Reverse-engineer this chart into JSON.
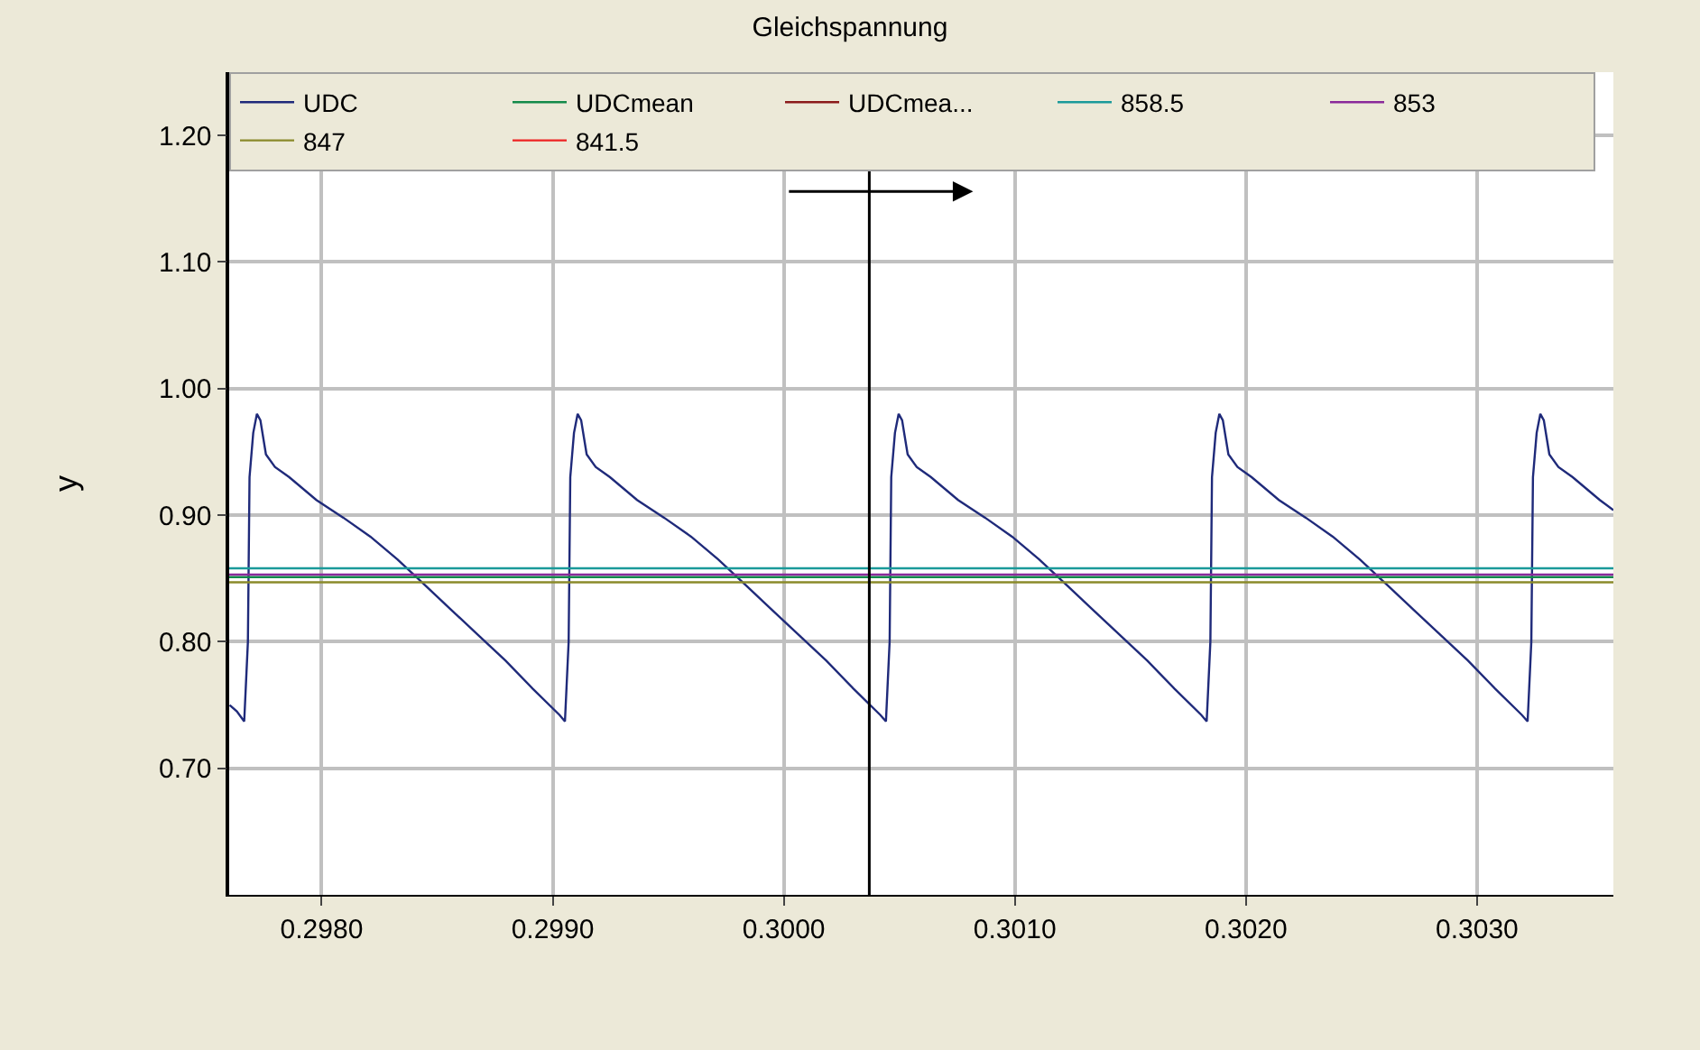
{
  "chart_data": {
    "type": "line",
    "title": "Gleichspannung",
    "ylabel": "y",
    "xlim": [
      0.2976,
      0.30359
    ],
    "xticks": [
      {
        "value": 0.298,
        "label": "0.2980"
      },
      {
        "value": 0.299,
        "label": "0.2990"
      },
      {
        "value": 0.3,
        "label": "0.3000"
      },
      {
        "value": 0.301,
        "label": "0.3010"
      },
      {
        "value": 0.302,
        "label": "0.3020"
      },
      {
        "value": 0.303,
        "label": "0.3030"
      }
    ],
    "ylim": [
      0.6,
      1.25
    ],
    "yticks": [
      {
        "value": 0.7,
        "label": "0.70"
      },
      {
        "value": 0.8,
        "label": "0.80"
      },
      {
        "value": 0.9,
        "label": "0.90"
      },
      {
        "value": 1.0,
        "label": "1.00"
      },
      {
        "value": 1.1,
        "label": "1.10"
      },
      {
        "value": 1.2,
        "label": "1.20"
      }
    ],
    "grid": true,
    "legend": "top",
    "marker": "none",
    "line_style": "solid",
    "ref_lines": [
      {
        "axis": "x",
        "value": 0.30037,
        "color": "#000000"
      }
    ],
    "series": [
      {
        "name": "UDC",
        "color": "#1f2a7a",
        "x": [
          0.297602,
          0.297633,
          0.297665,
          0.297681,
          0.297688,
          0.297704,
          0.29772,
          0.297735,
          0.297759,
          0.297798,
          0.29786,
          0.297977,
          0.298094,
          0.298211,
          0.298328,
          0.298445,
          0.298562,
          0.298679,
          0.298796,
          0.298913,
          0.29903,
          0.299053,
          0.299069,
          0.299076,
          0.299092,
          0.299108,
          0.299123,
          0.299147,
          0.299186,
          0.299248,
          0.299365,
          0.299482,
          0.299599,
          0.299716,
          0.299833,
          0.29995,
          0.300067,
          0.300184,
          0.300301,
          0.300418,
          0.300442,
          0.300458,
          0.300465,
          0.300481,
          0.300497,
          0.300512,
          0.300536,
          0.300575,
          0.300637,
          0.300754,
          0.300871,
          0.300988,
          0.301105,
          0.301222,
          0.301339,
          0.301456,
          0.301573,
          0.30169,
          0.301807,
          0.30183,
          0.301846,
          0.301853,
          0.301869,
          0.301885,
          0.3019,
          0.301924,
          0.301963,
          0.302025,
          0.302142,
          0.302259,
          0.302376,
          0.302493,
          0.30261,
          0.302727,
          0.302844,
          0.302961,
          0.303078,
          0.303195,
          0.303219,
          0.303235,
          0.303242,
          0.303258,
          0.303274,
          0.303289,
          0.303313,
          0.303352,
          0.303414,
          0.303531,
          0.30359
        ],
        "values": [
          0.75,
          0.745,
          0.737,
          0.8,
          0.93,
          0.965,
          0.98,
          0.975,
          0.948,
          0.938,
          0.93,
          0.912,
          0.898,
          0.883,
          0.865,
          0.845,
          0.825,
          0.805,
          0.785,
          0.763,
          0.742,
          0.737,
          0.8,
          0.93,
          0.965,
          0.98,
          0.975,
          0.948,
          0.938,
          0.93,
          0.912,
          0.898,
          0.883,
          0.865,
          0.845,
          0.825,
          0.805,
          0.785,
          0.763,
          0.742,
          0.737,
          0.8,
          0.93,
          0.965,
          0.98,
          0.975,
          0.948,
          0.938,
          0.93,
          0.912,
          0.898,
          0.883,
          0.865,
          0.845,
          0.825,
          0.805,
          0.785,
          0.763,
          0.742,
          0.737,
          0.8,
          0.93,
          0.965,
          0.98,
          0.975,
          0.948,
          0.938,
          0.93,
          0.912,
          0.898,
          0.883,
          0.865,
          0.845,
          0.825,
          0.805,
          0.785,
          0.763,
          0.742,
          0.737,
          0.8,
          0.93,
          0.965,
          0.98,
          0.975,
          0.948,
          0.938,
          0.93,
          0.912,
          0.904
        ]
      },
      {
        "name": "UDCmean",
        "color": "#138a4a",
        "x": [
          0.2976,
          0.30359
        ],
        "values": [
          0.851,
          0.851
        ]
      },
      {
        "name": "UDCmea...",
        "color": "#8b1a1a",
        "values": [
          null
        ]
      },
      {
        "name": "858.5",
        "color": "#1a9a9a",
        "x": [
          0.2976,
          0.30359
        ],
        "values": [
          0.858,
          0.858
        ]
      },
      {
        "name": "853",
        "color": "#8a2a9a",
        "x": [
          0.2976,
          0.30359
        ],
        "values": [
          0.853,
          0.853
        ]
      },
      {
        "name": "847",
        "color": "#8a8a2a",
        "x": [
          0.2976,
          0.30359
        ],
        "values": [
          0.847,
          0.847
        ]
      },
      {
        "name": "841.5",
        "color": "#ee2222",
        "values": [
          null
        ]
      }
    ]
  }
}
